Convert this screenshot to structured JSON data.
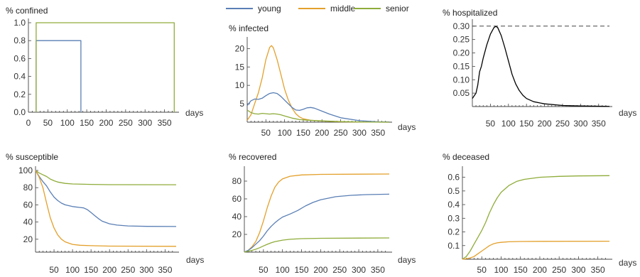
{
  "colors": {
    "young": "#5a7fb5",
    "middle": "#e3a02b",
    "senior": "#8fac3a",
    "hospitalized": "#000000",
    "capacity": "#444444"
  },
  "legend": {
    "position": "top-center",
    "entries": [
      "young",
      "middle",
      "senior"
    ]
  },
  "chart_data": [
    {
      "id": "confined",
      "type": "line",
      "title": "% confined",
      "xlabel": "days",
      "ylabel": "",
      "xlim": [
        0,
        380
      ],
      "ylim": [
        0,
        1.0
      ],
      "xticks": [
        "0",
        "50",
        "100",
        "150",
        "200",
        "250",
        "300",
        "350"
      ],
      "yticks": [
        "0.0",
        "0.2",
        "0.4",
        "0.6",
        "0.8",
        "1.0"
      ],
      "series": [
        {
          "key": "young",
          "points": [
            [
              20,
              0
            ],
            [
              20,
              0.8
            ],
            [
              135,
              0.8
            ],
            [
              135,
              0
            ]
          ]
        },
        {
          "key": "senior",
          "points": [
            [
              20,
              0
            ],
            [
              20,
              1.0
            ],
            [
              375,
              1.0
            ],
            [
              375,
              0
            ]
          ]
        }
      ]
    },
    {
      "id": "infected",
      "type": "line",
      "title": "% infected",
      "xlabel": "days",
      "ylabel": "",
      "xlim": [
        0,
        380
      ],
      "ylim": [
        0,
        22
      ],
      "xticks": [
        "50",
        "100",
        "150",
        "200",
        "250",
        "300",
        "350"
      ],
      "yticks": [
        "5",
        "10",
        "15",
        "20"
      ],
      "series": [
        {
          "key": "middle",
          "points": [
            [
              0,
              0.5
            ],
            [
              10,
              2
            ],
            [
              20,
              5
            ],
            [
              30,
              8
            ],
            [
              40,
              12
            ],
            [
              50,
              17
            ],
            [
              60,
              20.3
            ],
            [
              65,
              20.8
            ],
            [
              70,
              20.2
            ],
            [
              80,
              17
            ],
            [
              90,
              13
            ],
            [
              100,
              9
            ],
            [
              110,
              6
            ],
            [
              120,
              3.8
            ],
            [
              130,
              2.3
            ],
            [
              140,
              1.4
            ],
            [
              150,
              0.9
            ],
            [
              170,
              0.5
            ],
            [
              200,
              0.3
            ],
            [
              250,
              0.1
            ],
            [
              300,
              0.05
            ],
            [
              380,
              0
            ]
          ]
        },
        {
          "key": "young",
          "points": [
            [
              0,
              4.5
            ],
            [
              10,
              5.8
            ],
            [
              20,
              6.3
            ],
            [
              30,
              6.2
            ],
            [
              40,
              6.5
            ],
            [
              50,
              7.2
            ],
            [
              60,
              7.8
            ],
            [
              70,
              8
            ],
            [
              80,
              7.8
            ],
            [
              90,
              7
            ],
            [
              100,
              6
            ],
            [
              110,
              5
            ],
            [
              120,
              4
            ],
            [
              130,
              3.3
            ],
            [
              140,
              3.2
            ],
            [
              150,
              3.5
            ],
            [
              160,
              3.9
            ],
            [
              170,
              4
            ],
            [
              180,
              3.8
            ],
            [
              200,
              3
            ],
            [
              220,
              2.2
            ],
            [
              250,
              1.2
            ],
            [
              300,
              0.4
            ],
            [
              350,
              0.1
            ],
            [
              380,
              0.05
            ]
          ]
        },
        {
          "key": "senior",
          "points": [
            [
              0,
              3.3
            ],
            [
              10,
              2.6
            ],
            [
              20,
              2.3
            ],
            [
              30,
              2.2
            ],
            [
              40,
              2.4
            ],
            [
              50,
              2.3
            ],
            [
              60,
              2.2
            ],
            [
              70,
              2.3
            ],
            [
              80,
              2.2
            ],
            [
              90,
              2
            ],
            [
              100,
              1.7
            ],
            [
              110,
              1.4
            ],
            [
              120,
              1.1
            ],
            [
              130,
              0.9
            ],
            [
              140,
              0.7
            ],
            [
              160,
              0.55
            ],
            [
              180,
              0.45
            ],
            [
              200,
              0.35
            ],
            [
              250,
              0.15
            ],
            [
              300,
              0.05
            ],
            [
              380,
              0
            ]
          ]
        }
      ]
    },
    {
      "id": "hospitalized",
      "type": "line",
      "title": "% hospitalized",
      "xlabel": "days",
      "ylabel": "",
      "xlim": [
        0,
        380
      ],
      "ylim": [
        0,
        0.31
      ],
      "xticks": [
        "50",
        "100",
        "150",
        "200",
        "250",
        "300",
        "350"
      ],
      "yticks": [
        "0.05",
        "0.10",
        "0.15",
        "0.20",
        "0.25",
        "0.30"
      ],
      "capacity": 0.3,
      "series": [
        {
          "key": "hospitalized",
          "points": [
            [
              0,
              0.03
            ],
            [
              10,
              0.05
            ],
            [
              15,
              0.08
            ],
            [
              20,
              0.13
            ],
            [
              25,
              0.15
            ],
            [
              30,
              0.18
            ],
            [
              40,
              0.23
            ],
            [
              50,
              0.27
            ],
            [
              60,
              0.295
            ],
            [
              65,
              0.299
            ],
            [
              70,
              0.295
            ],
            [
              80,
              0.265
            ],
            [
              90,
              0.22
            ],
            [
              100,
              0.17
            ],
            [
              110,
              0.12
            ],
            [
              120,
              0.085
            ],
            [
              130,
              0.06
            ],
            [
              140,
              0.042
            ],
            [
              150,
              0.03
            ],
            [
              170,
              0.018
            ],
            [
              200,
              0.01
            ],
            [
              250,
              0.004
            ],
            [
              300,
              0.002
            ],
            [
              380,
              0.0005
            ]
          ]
        }
      ]
    },
    {
      "id": "susceptible",
      "type": "line",
      "title": "% susceptible",
      "xlabel": "days",
      "ylabel": "",
      "xlim": [
        0,
        380
      ],
      "ylim": [
        5,
        100
      ],
      "xticks": [
        "50",
        "100",
        "150",
        "200",
        "250",
        "300",
        "350"
      ],
      "yticks": [
        "20",
        "40",
        "60",
        "80",
        "100"
      ],
      "series": [
        {
          "key": "senior",
          "points": [
            [
              0,
              100
            ],
            [
              10,
              97
            ],
            [
              20,
              95
            ],
            [
              30,
              93
            ],
            [
              40,
              90
            ],
            [
              50,
              88
            ],
            [
              60,
              86.5
            ],
            [
              80,
              85
            ],
            [
              100,
              84.3
            ],
            [
              150,
              83.8
            ],
            [
              200,
              83.5
            ],
            [
              380,
              83.4
            ]
          ]
        },
        {
          "key": "young",
          "points": [
            [
              0,
              100
            ],
            [
              10,
              93
            ],
            [
              20,
              87
            ],
            [
              30,
              82
            ],
            [
              40,
              75
            ],
            [
              50,
              69
            ],
            [
              60,
              65
            ],
            [
              70,
              62
            ],
            [
              80,
              60
            ],
            [
              100,
              58
            ],
            [
              120,
              57
            ],
            [
              130,
              56.5
            ],
            [
              140,
              54.5
            ],
            [
              150,
              51
            ],
            [
              160,
              47.5
            ],
            [
              170,
              44
            ],
            [
              180,
              41
            ],
            [
              200,
              38
            ],
            [
              220,
              36.5
            ],
            [
              250,
              35.5
            ],
            [
              300,
              35
            ],
            [
              380,
              34.8
            ]
          ]
        },
        {
          "key": "middle",
          "points": [
            [
              0,
              100
            ],
            [
              10,
              92
            ],
            [
              20,
              80
            ],
            [
              30,
              62
            ],
            [
              40,
              45
            ],
            [
              50,
              33
            ],
            [
              60,
              25
            ],
            [
              70,
              20
            ],
            [
              80,
              17
            ],
            [
              100,
              14
            ],
            [
              120,
              13
            ],
            [
              150,
              12.5
            ],
            [
              200,
              12
            ],
            [
              380,
              11.8
            ]
          ]
        }
      ]
    },
    {
      "id": "recovered",
      "type": "line",
      "title": "% recovered",
      "xlabel": "days",
      "ylabel": "",
      "xlim": [
        0,
        380
      ],
      "ylim": [
        0,
        92
      ],
      "xticks": [
        "50",
        "100",
        "150",
        "200",
        "250",
        "300",
        "350"
      ],
      "yticks": [
        "20",
        "40",
        "60",
        "80"
      ],
      "series": [
        {
          "key": "middle",
          "points": [
            [
              0,
              0
            ],
            [
              10,
              2
            ],
            [
              20,
              6
            ],
            [
              30,
              12
            ],
            [
              40,
              22
            ],
            [
              50,
              35
            ],
            [
              60,
              50
            ],
            [
              70,
              63
            ],
            [
              80,
              73
            ],
            [
              90,
              79
            ],
            [
              100,
              82.5
            ],
            [
              120,
              85.5
            ],
            [
              150,
              87
            ],
            [
              200,
              87.6
            ],
            [
              380,
              88
            ]
          ]
        },
        {
          "key": "young",
          "points": [
            [
              0,
              0
            ],
            [
              10,
              2
            ],
            [
              20,
              5
            ],
            [
              30,
              9
            ],
            [
              40,
              13
            ],
            [
              50,
              18
            ],
            [
              60,
              24
            ],
            [
              70,
              29
            ],
            [
              80,
              33
            ],
            [
              90,
              36.5
            ],
            [
              100,
              39.5
            ],
            [
              120,
              43
            ],
            [
              140,
              47
            ],
            [
              160,
              52
            ],
            [
              180,
              56
            ],
            [
              200,
              59
            ],
            [
              240,
              62.5
            ],
            [
              280,
              64
            ],
            [
              320,
              64.8
            ],
            [
              380,
              65.3
            ]
          ]
        },
        {
          "key": "senior",
          "points": [
            [
              0,
              0
            ],
            [
              10,
              1
            ],
            [
              20,
              2
            ],
            [
              30,
              3.3
            ],
            [
              40,
              5
            ],
            [
              50,
              7
            ],
            [
              60,
              8.8
            ],
            [
              70,
              10.5
            ],
            [
              80,
              11.8
            ],
            [
              100,
              13.5
            ],
            [
              120,
              14.5
            ],
            [
              150,
              15.2
            ],
            [
              200,
              15.6
            ],
            [
              380,
              16
            ]
          ]
        }
      ]
    },
    {
      "id": "deceased",
      "type": "line",
      "title": "% deceased",
      "xlabel": "days",
      "ylabel": "",
      "xlim": [
        0,
        380
      ],
      "ylim": [
        0,
        0.65
      ],
      "xticks": [
        "50",
        "100",
        "150",
        "200",
        "250",
        "300",
        "350"
      ],
      "yticks": [
        "0.1",
        "0.2",
        "0.3",
        "0.4",
        "0.5",
        "0.6"
      ],
      "series": [
        {
          "key": "senior",
          "points": [
            [
              0,
              0
            ],
            [
              10,
              0.02
            ],
            [
              20,
              0.06
            ],
            [
              30,
              0.11
            ],
            [
              40,
              0.16
            ],
            [
              50,
              0.21
            ],
            [
              60,
              0.27
            ],
            [
              70,
              0.34
            ],
            [
              80,
              0.4
            ],
            [
              90,
              0.45
            ],
            [
              100,
              0.49
            ],
            [
              120,
              0.54
            ],
            [
              140,
              0.57
            ],
            [
              160,
              0.585
            ],
            [
              200,
              0.6
            ],
            [
              250,
              0.607
            ],
            [
              300,
              0.61
            ],
            [
              380,
              0.612
            ]
          ]
        },
        {
          "key": "middle",
          "points": [
            [
              0,
              0
            ],
            [
              10,
              0.003
            ],
            [
              20,
              0.01
            ],
            [
              30,
              0.02
            ],
            [
              40,
              0.04
            ],
            [
              50,
              0.06
            ],
            [
              60,
              0.08
            ],
            [
              70,
              0.1
            ],
            [
              80,
              0.113
            ],
            [
              90,
              0.12
            ],
            [
              100,
              0.124
            ],
            [
              120,
              0.128
            ],
            [
              150,
              0.13
            ],
            [
              200,
              0.131
            ],
            [
              380,
              0.132
            ]
          ]
        }
      ]
    }
  ]
}
